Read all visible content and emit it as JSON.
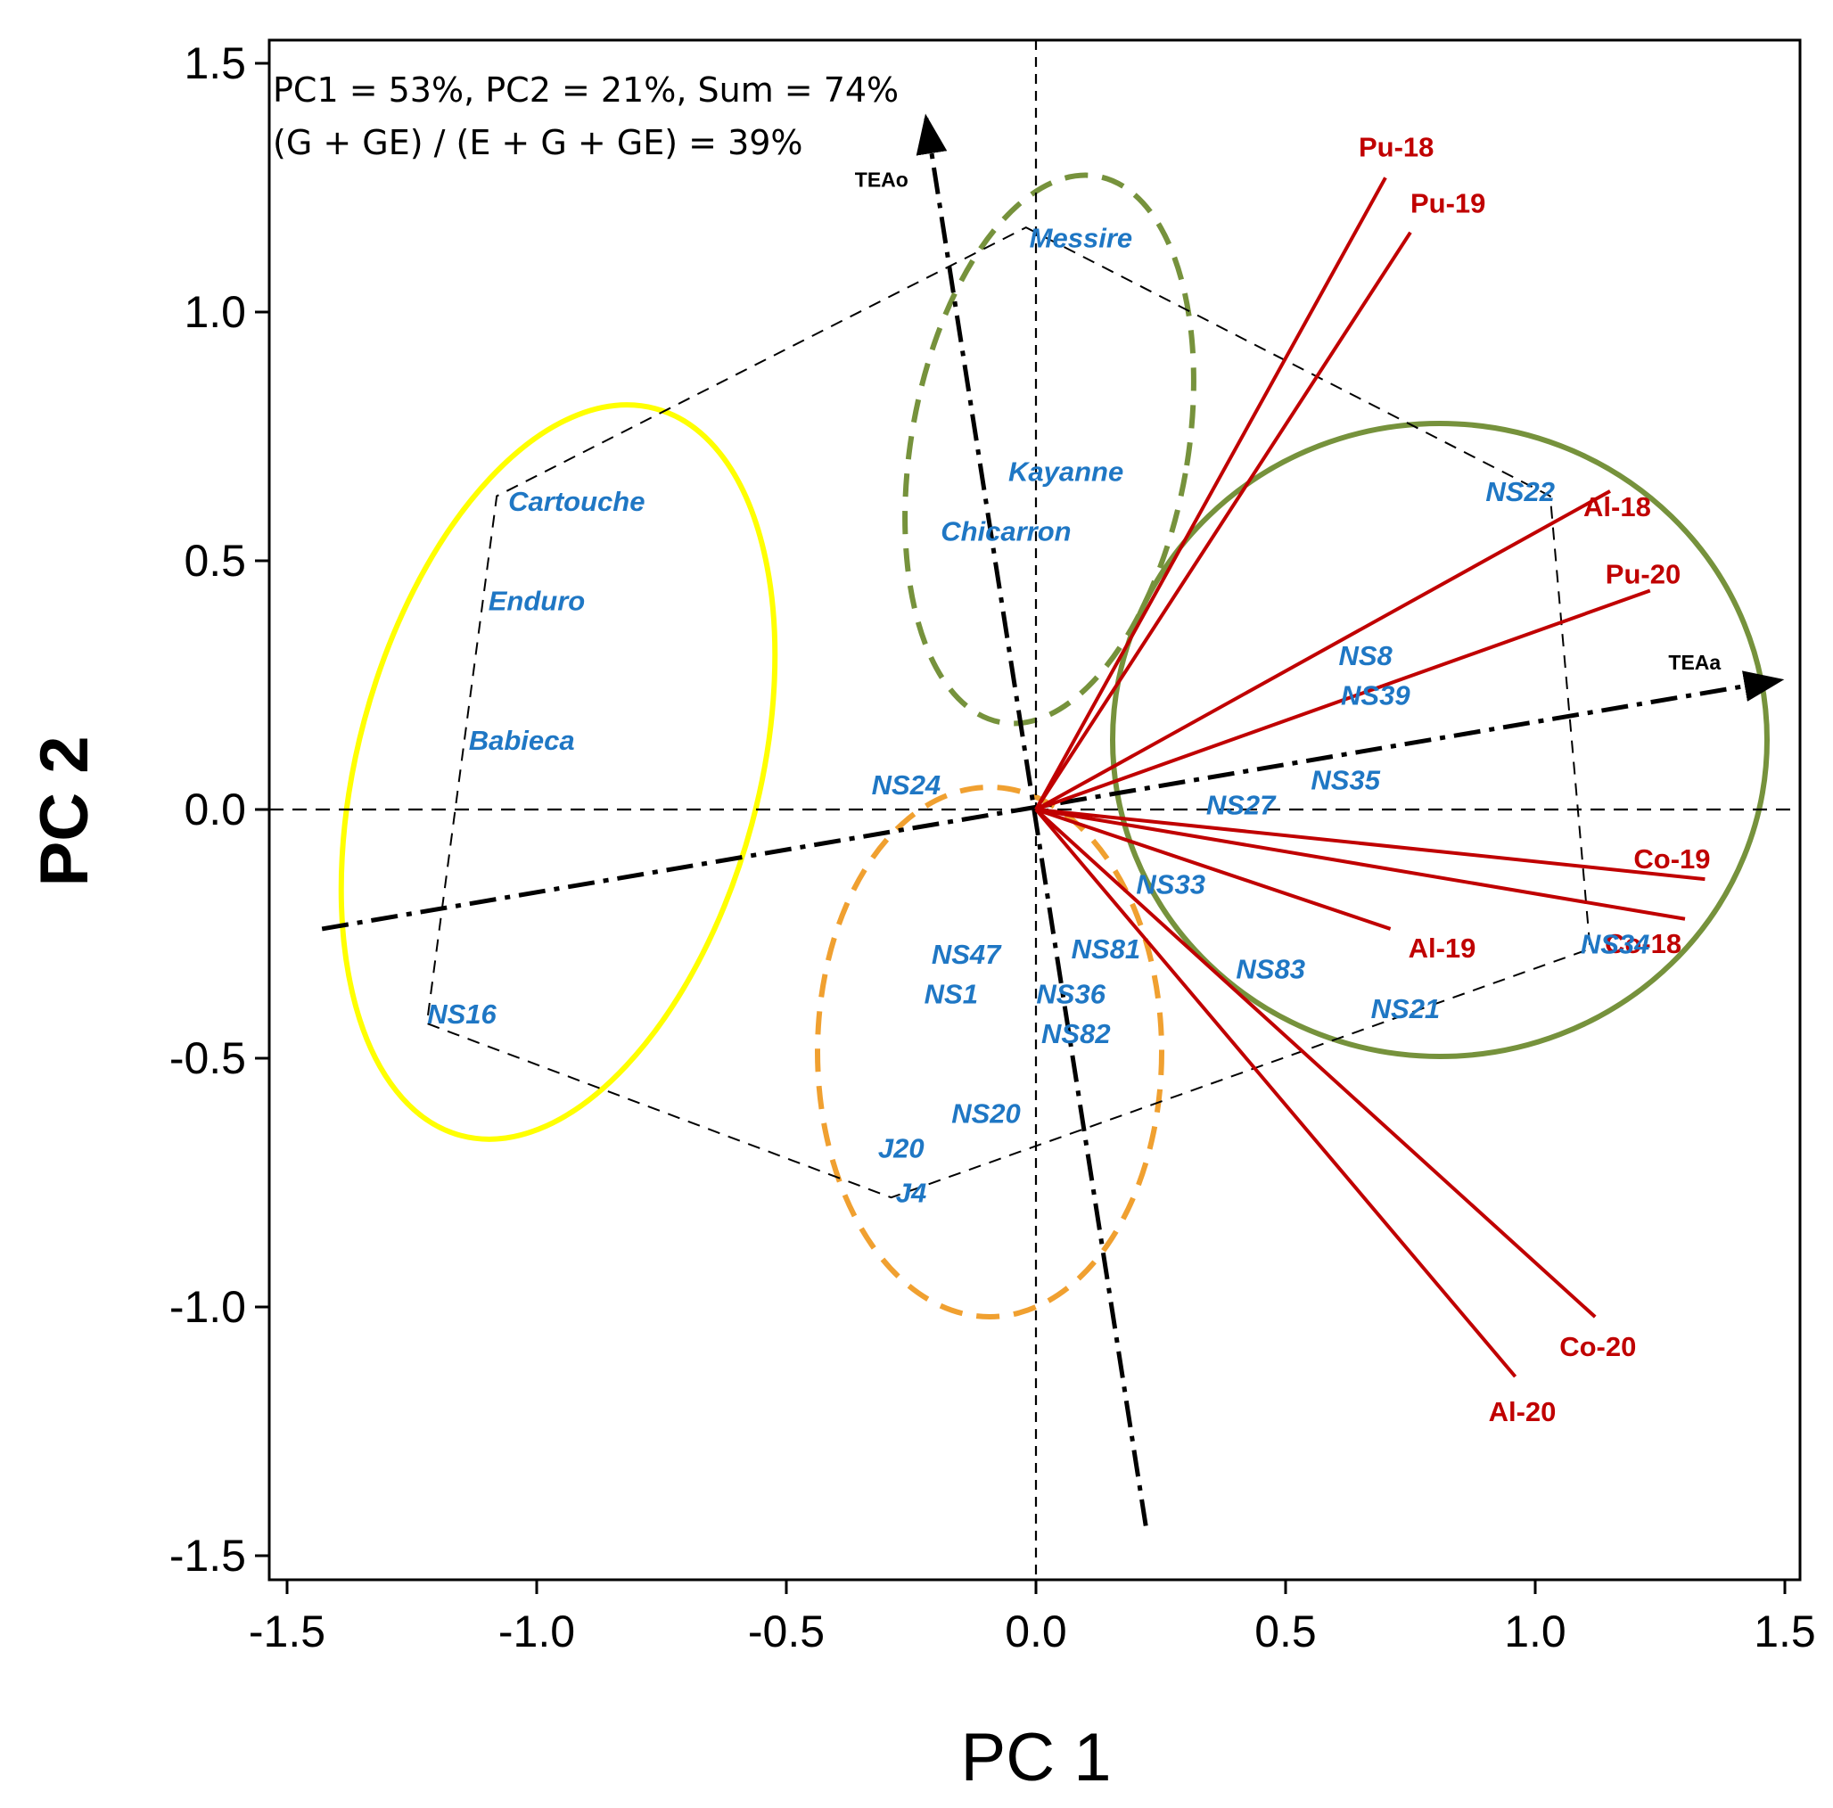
{
  "chart_data": {
    "type": "scatter",
    "subtype": "GGE biplot",
    "xlabel": "PC 1",
    "ylabel": "PC 2",
    "xlim": [
      -1.52,
      1.54
    ],
    "ylim": [
      -1.55,
      1.56
    ],
    "xticks": [
      -1.5,
      -1.0,
      -0.5,
      0.0,
      0.5,
      1.0,
      1.5
    ],
    "yticks": [
      -1.5,
      -1.0,
      -0.5,
      0.0,
      0.5,
      1.0,
      1.5
    ],
    "xtick_labels": [
      "-1.5",
      "-1.0",
      "-0.5",
      "0.0",
      "0.5",
      "1.0",
      "1.5"
    ],
    "ytick_labels": [
      "-1.5",
      "-1.0",
      "-0.5",
      "0.0",
      "0.5",
      "1.0",
      "1.5"
    ],
    "annotation": {
      "line1": "PC1 =  53%, PC2 = 21%, Sum = 74%",
      "line2": "(G + GE) / (E + G + GE) = 39%"
    },
    "genotypes": [
      {
        "label": "Messire",
        "x": 0.09,
        "y": 1.15
      },
      {
        "label": "Kayanne",
        "x": 0.06,
        "y": 0.68
      },
      {
        "label": "Chicarron",
        "x": -0.06,
        "y": 0.56
      },
      {
        "label": "Cartouche",
        "x": -0.92,
        "y": 0.62
      },
      {
        "label": "Enduro",
        "x": -1.0,
        "y": 0.42
      },
      {
        "label": "Babieca",
        "x": -1.03,
        "y": 0.14
      },
      {
        "label": "NS24",
        "x": -0.26,
        "y": 0.05
      },
      {
        "label": "NS16",
        "x": -1.15,
        "y": -0.41
      },
      {
        "label": "NS22",
        "x": 0.97,
        "y": 0.64
      },
      {
        "label": "NS8",
        "x": 0.66,
        "y": 0.31
      },
      {
        "label": "NS39",
        "x": 0.68,
        "y": 0.23
      },
      {
        "label": "NS35",
        "x": 0.62,
        "y": 0.06
      },
      {
        "label": "NS27",
        "x": 0.41,
        "y": 0.01
      },
      {
        "label": "NS33",
        "x": 0.27,
        "y": -0.15
      },
      {
        "label": "NS34",
        "x": 1.16,
        "y": -0.27
      },
      {
        "label": "NS83",
        "x": 0.47,
        "y": -0.32
      },
      {
        "label": "NS21",
        "x": 0.74,
        "y": -0.4
      },
      {
        "label": "NS81",
        "x": 0.14,
        "y": -0.28
      },
      {
        "label": "NS36",
        "x": 0.07,
        "y": -0.37
      },
      {
        "label": "NS82",
        "x": 0.08,
        "y": -0.45
      },
      {
        "label": "NS47",
        "x": -0.14,
        "y": -0.29
      },
      {
        "label": "NS1",
        "x": -0.17,
        "y": -0.37
      },
      {
        "label": "NS20",
        "x": -0.1,
        "y": -0.61
      },
      {
        "label": "J20",
        "x": -0.27,
        "y": -0.68
      },
      {
        "label": "J4",
        "x": -0.25,
        "y": -0.77
      }
    ],
    "environments": [
      {
        "label": "Pu-18",
        "x": 0.7,
        "y": 1.27
      },
      {
        "label": "Pu-19",
        "x": 0.75,
        "y": 1.16
      },
      {
        "label": "Al-18",
        "x": 1.15,
        "y": 0.64
      },
      {
        "label": "Pu-20",
        "x": 1.23,
        "y": 0.44
      },
      {
        "label": "Co-19",
        "x": 1.34,
        "y": -0.14
      },
      {
        "label": "Co-18",
        "x": 1.3,
        "y": -0.22
      },
      {
        "label": "Al-19",
        "x": 0.71,
        "y": -0.24
      },
      {
        "label": "Co-20",
        "x": 1.12,
        "y": -1.02
      },
      {
        "label": "Al-20",
        "x": 0.96,
        "y": -1.14
      }
    ],
    "polygon_vertices": [
      {
        "x": -0.02,
        "y": 1.17
      },
      {
        "x": 1.03,
        "y": 0.63
      },
      {
        "x": 1.11,
        "y": -0.28
      },
      {
        "x": -0.29,
        "y": -0.78
      },
      {
        "x": -1.22,
        "y": -0.43
      },
      {
        "x": -1.08,
        "y": 0.63
      }
    ],
    "atc_axes": [
      {
        "label": "TEAa",
        "from": {
          "x": -1.43,
          "y": -0.24
        },
        "to": {
          "x": 1.49,
          "y": 0.26
        }
      },
      {
        "label": "TEAo",
        "from": {
          "x": 0.22,
          "y": -1.44
        },
        "to": {
          "x": -0.22,
          "y": 1.39
        }
      }
    ],
    "groups": [
      {
        "color": "#ffff00",
        "style": "solid",
        "members": [
          "Cartouche",
          "Enduro",
          "Babieca",
          "NS16"
        ]
      },
      {
        "color": "#76923c",
        "style": "dashed",
        "members": [
          "Messire",
          "Kayanne",
          "Chicarron"
        ]
      },
      {
        "color": "#76923c",
        "style": "solid",
        "members": [
          "NS22",
          "NS8",
          "NS39",
          "NS35",
          "NS27",
          "NS33",
          "NS34",
          "NS21"
        ]
      },
      {
        "color": "#f0a030",
        "style": "dashed",
        "members": [
          "NS47",
          "NS1",
          "NS81",
          "NS36",
          "NS82",
          "NS20",
          "J20",
          "J4"
        ]
      }
    ]
  }
}
